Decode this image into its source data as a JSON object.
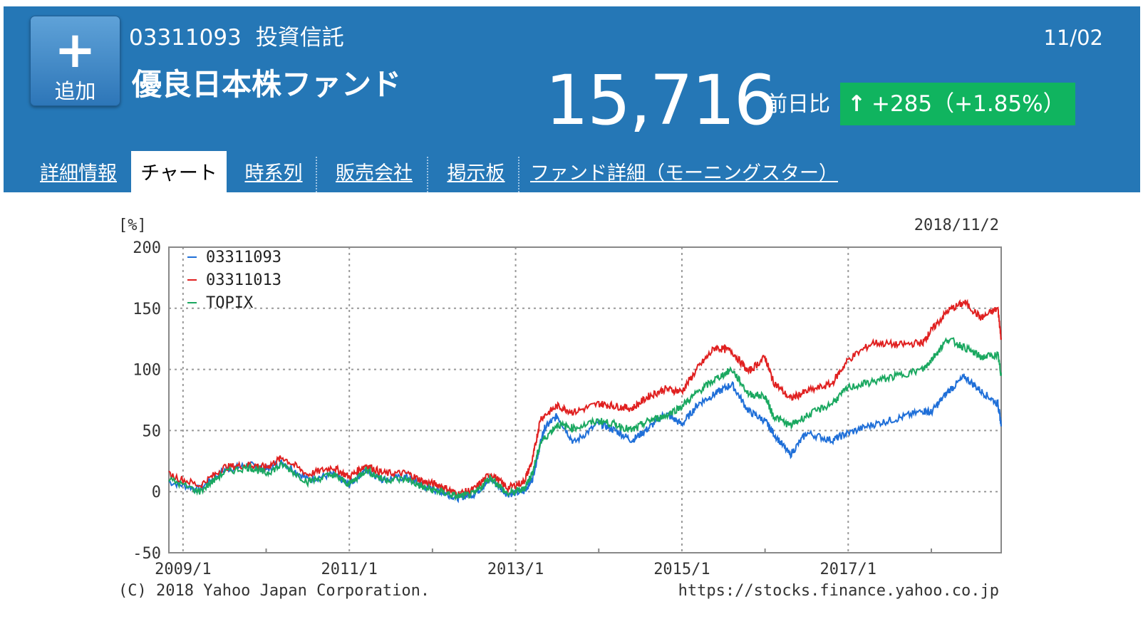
{
  "header": {
    "add_button": {
      "icon": "plus-icon",
      "label": "追加"
    },
    "code": "03311093",
    "type": "投資信託",
    "fund_name": "優良日本株ファンド",
    "date": "11/02",
    "price": "15,716",
    "change_label": "前日比",
    "change": {
      "arrow": "↑",
      "text": "+285（+1.85%）"
    },
    "colors": {
      "banner": "#2577b6",
      "badge": "#10b45f"
    }
  },
  "tabs": [
    {
      "label": "詳細情報",
      "active": false
    },
    {
      "label": "チャート",
      "active": true
    },
    {
      "label": "時系列",
      "active": false
    },
    {
      "label": "販売会社",
      "active": false
    },
    {
      "label": "掲示板",
      "active": false
    },
    {
      "label": "ファンド詳細（モーニングスター）",
      "active": false
    }
  ],
  "chart_data": {
    "type": "line",
    "unit_label": "[%]",
    "as_of": "2018/11/2",
    "ylim": [
      -50,
      200
    ],
    "yticks": [
      "200",
      "150",
      "100",
      "50",
      "0",
      "-50"
    ],
    "xlim": [
      2008.83,
      2018.84
    ],
    "xticks": [
      {
        "label": "2009/1",
        "x": 2009.0
      },
      {
        "label": "2011/1",
        "x": 2011.0
      },
      {
        "label": "2013/1",
        "x": 2013.0
      },
      {
        "label": "2015/1",
        "x": 2015.0
      },
      {
        "label": "2017/1",
        "x": 2017.0
      }
    ],
    "grid": true,
    "legend": "top-left",
    "credit": "(C) 2018 Yahoo Japan Corporation.",
    "url": "https://stocks.finance.yahoo.co.jp",
    "series": [
      {
        "name": "03311093",
        "color": "#1f6fd8",
        "x": [
          2008.83,
          2009.2,
          2009.5,
          2009.8,
          2010.0,
          2010.2,
          2010.5,
          2010.8,
          2011.0,
          2011.2,
          2011.4,
          2011.7,
          2011.9,
          2012.1,
          2012.3,
          2012.5,
          2012.7,
          2012.9,
          2013.1,
          2013.2,
          2013.3,
          2013.35,
          2013.5,
          2013.7,
          2014.0,
          2014.2,
          2014.4,
          2014.6,
          2014.8,
          2015.0,
          2015.2,
          2015.4,
          2015.6,
          2015.8,
          2016.0,
          2016.1,
          2016.3,
          2016.5,
          2016.8,
          2017.0,
          2017.3,
          2017.6,
          2017.9,
          2018.0,
          2018.2,
          2018.4,
          2018.6,
          2018.8,
          2018.84
        ],
        "y": [
          8,
          2,
          18,
          22,
          18,
          24,
          10,
          14,
          6,
          18,
          10,
          12,
          4,
          0,
          -5,
          -2,
          10,
          -2,
          0,
          10,
          40,
          52,
          62,
          40,
          56,
          50,
          42,
          52,
          64,
          55,
          72,
          80,
          88,
          66,
          58,
          48,
          30,
          48,
          42,
          48,
          55,
          60,
          66,
          65,
          82,
          94,
          82,
          72,
          55
        ]
      },
      {
        "name": "03311013",
        "color": "#e02020",
        "x": [
          2008.83,
          2009.2,
          2009.5,
          2009.8,
          2010.0,
          2010.2,
          2010.5,
          2010.8,
          2011.0,
          2011.2,
          2011.4,
          2011.7,
          2011.9,
          2012.1,
          2012.3,
          2012.5,
          2012.7,
          2012.9,
          2013.1,
          2013.2,
          2013.3,
          2013.5,
          2013.7,
          2014.0,
          2014.2,
          2014.4,
          2014.6,
          2014.8,
          2015.0,
          2015.2,
          2015.4,
          2015.6,
          2015.8,
          2016.0,
          2016.1,
          2016.3,
          2016.5,
          2016.8,
          2017.0,
          2017.3,
          2017.6,
          2017.9,
          2018.0,
          2018.2,
          2018.4,
          2018.6,
          2018.8,
          2018.84
        ],
        "y": [
          14,
          5,
          20,
          22,
          20,
          28,
          14,
          20,
          12,
          22,
          15,
          15,
          8,
          5,
          -2,
          2,
          15,
          3,
          8,
          25,
          60,
          70,
          65,
          72,
          70,
          68,
          78,
          84,
          82,
          102,
          118,
          115,
          98,
          110,
          90,
          76,
          82,
          88,
          108,
          122,
          120,
          122,
          132,
          148,
          155,
          142,
          150,
          125
        ]
      },
      {
        "name": "TOPIX",
        "color": "#1aa860",
        "x": [
          2008.83,
          2009.2,
          2009.5,
          2009.8,
          2010.0,
          2010.2,
          2010.5,
          2010.8,
          2011.0,
          2011.2,
          2011.4,
          2011.7,
          2011.9,
          2012.1,
          2012.3,
          2012.5,
          2012.7,
          2012.9,
          2013.1,
          2013.2,
          2013.3,
          2013.5,
          2013.7,
          2014.0,
          2014.2,
          2014.4,
          2014.6,
          2014.8,
          2015.0,
          2015.2,
          2015.4,
          2015.6,
          2015.8,
          2016.0,
          2016.1,
          2016.3,
          2016.5,
          2016.8,
          2017.0,
          2017.3,
          2017.6,
          2017.9,
          2018.0,
          2018.2,
          2018.4,
          2018.6,
          2018.8,
          2018.84
        ],
        "y": [
          10,
          0,
          16,
          20,
          15,
          22,
          8,
          14,
          6,
          18,
          10,
          10,
          3,
          0,
          -4,
          -2,
          12,
          -2,
          2,
          15,
          40,
          55,
          52,
          58,
          55,
          50,
          58,
          62,
          70,
          82,
          92,
          100,
          80,
          78,
          62,
          54,
          62,
          72,
          85,
          90,
          95,
          100,
          108,
          125,
          118,
          110,
          112,
          95
        ]
      }
    ]
  }
}
